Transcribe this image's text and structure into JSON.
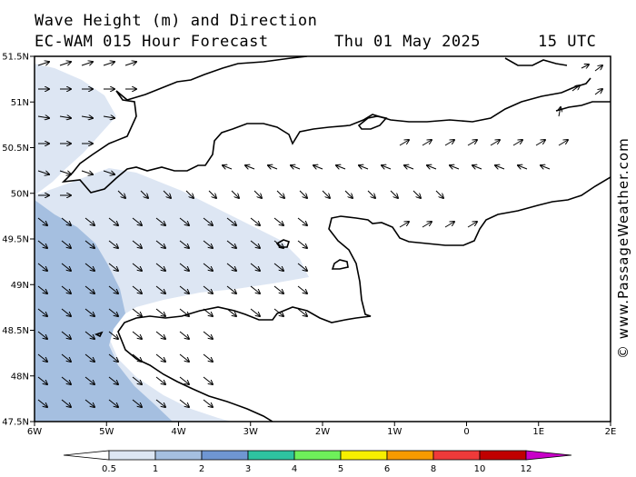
{
  "header": {
    "title": "Wave Height (m) and Direction",
    "model": "EC-WAM 015 Hour Forecast",
    "date": "Thu 01 May 2025",
    "time": "15 UTC"
  },
  "credit": "© www.PassageWeather.com",
  "axes": {
    "lat_labels": [
      "51.5N",
      "51N",
      "50.5N",
      "50N",
      "49.5N",
      "49N",
      "48.5N",
      "48N",
      "47.5N"
    ],
    "lon_labels": [
      "6W",
      "5W",
      "4W",
      "3W",
      "2W",
      "1W",
      "0",
      "1E",
      "2E"
    ]
  },
  "colorbar": {
    "labels": [
      "0.5",
      "1",
      "2",
      "3",
      "4",
      "5",
      "6",
      "8",
      "10",
      "12"
    ],
    "colors": [
      "#dde6f3",
      "#a5bfe0",
      "#6f96d2",
      "#2ec3a0",
      "#6ef05a",
      "#f7f000",
      "#f79a00",
      "#ef3a3a",
      "#c00000",
      "#c800c8"
    ]
  },
  "colors": {
    "band_low": "#dde6f3",
    "band_mid": "#a5bfe0",
    "coast": "#000000"
  }
}
